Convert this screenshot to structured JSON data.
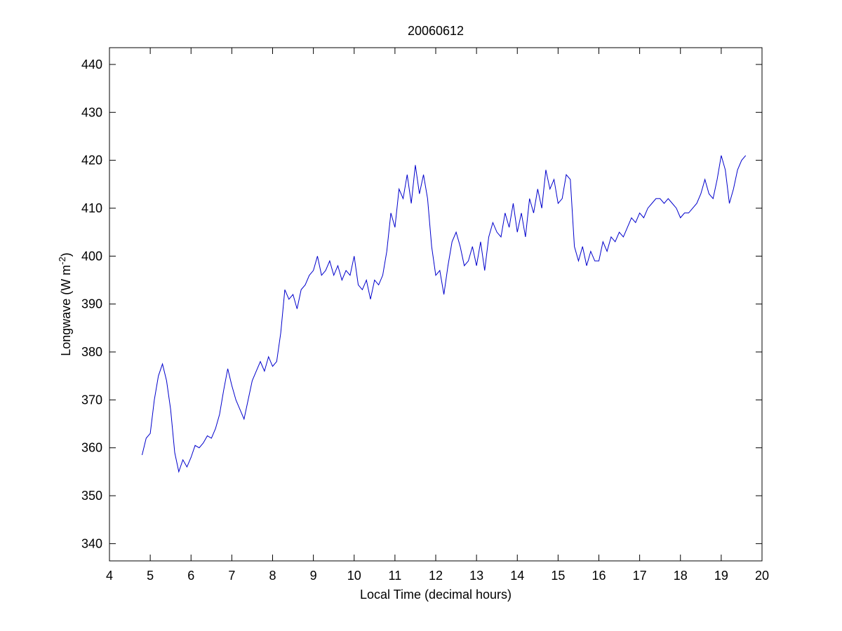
{
  "chart_data": {
    "type": "line",
    "title": "20060612",
    "xlabel": "Local Time (decimal hours)",
    "ylabel": {
      "text": "Longwave (W m",
      "superscript": "-2",
      "suffix": ")"
    },
    "xlim": [
      4,
      20
    ],
    "ylim": [
      336.4,
      443.5
    ],
    "xticks": [
      4,
      5,
      6,
      7,
      8,
      9,
      10,
      11,
      12,
      13,
      14,
      15,
      16,
      17,
      18,
      19,
      20
    ],
    "yticks": [
      340,
      350,
      360,
      370,
      380,
      390,
      400,
      410,
      420,
      430,
      440
    ],
    "grid": false,
    "x": [
      4.8,
      4.9,
      5.0,
      5.1,
      5.2,
      5.3,
      5.4,
      5.5,
      5.6,
      5.7,
      5.8,
      5.9,
      6.0,
      6.1,
      6.2,
      6.3,
      6.4,
      6.5,
      6.6,
      6.7,
      6.8,
      6.9,
      7.0,
      7.1,
      7.2,
      7.3,
      7.4,
      7.5,
      7.6,
      7.7,
      7.8,
      7.9,
      8.0,
      8.1,
      8.2,
      8.3,
      8.4,
      8.5,
      8.6,
      8.7,
      8.8,
      8.9,
      9.0,
      9.1,
      9.2,
      9.3,
      9.4,
      9.5,
      9.6,
      9.7,
      9.8,
      9.9,
      10.0,
      10.1,
      10.2,
      10.3,
      10.4,
      10.5,
      10.6,
      10.7,
      10.8,
      10.9,
      11.0,
      11.1,
      11.2,
      11.3,
      11.4,
      11.5,
      11.6,
      11.7,
      11.8,
      11.9,
      12.0,
      12.1,
      12.2,
      12.3,
      12.4,
      12.5,
      12.6,
      12.7,
      12.8,
      12.9,
      13.0,
      13.1,
      13.2,
      13.3,
      13.4,
      13.5,
      13.6,
      13.7,
      13.8,
      13.9,
      14.0,
      14.1,
      14.2,
      14.3,
      14.4,
      14.5,
      14.6,
      14.7,
      14.8,
      14.9,
      15.0,
      15.1,
      15.2,
      15.3,
      15.4,
      15.5,
      15.6,
      15.7,
      15.8,
      15.9,
      16.0,
      16.1,
      16.2,
      16.3,
      16.4,
      16.5,
      16.6,
      16.7,
      16.8,
      16.9,
      17.0,
      17.1,
      17.2,
      17.3,
      17.4,
      17.5,
      17.6,
      17.7,
      17.8,
      17.9,
      18.0,
      18.1,
      18.2,
      18.3,
      18.4,
      18.5,
      18.6,
      18.7,
      18.8,
      18.9,
      19.0,
      19.1,
      19.2,
      19.3,
      19.4,
      19.5,
      19.6
    ],
    "series": [
      {
        "name": "Longwave",
        "color": "#0000cc",
        "values": [
          358.5,
          362,
          363,
          370,
          375,
          377.5,
          374,
          368,
          359,
          355,
          357.5,
          356,
          358,
          360.5,
          360,
          361,
          362.5,
          362,
          364,
          367,
          372,
          376.5,
          373,
          370,
          368,
          366,
          370,
          374,
          376,
          378,
          376,
          379,
          377,
          378,
          384,
          393,
          391,
          392,
          389,
          393,
          394,
          396,
          397,
          400,
          396,
          397,
          399,
          396,
          398,
          395,
          397,
          396,
          400,
          394,
          393,
          395,
          391,
          395,
          394,
          396,
          401,
          409,
          406,
          414,
          412,
          417,
          411,
          419,
          413,
          417,
          412,
          402,
          396,
          397,
          392,
          398,
          403,
          405,
          402,
          398,
          399,
          402,
          398,
          403,
          397,
          404,
          407,
          405,
          404,
          409,
          406,
          411,
          405,
          409,
          404,
          412,
          409,
          414,
          410,
          418,
          414,
          416,
          411,
          412,
          417,
          416,
          402,
          399,
          402,
          398,
          401,
          399,
          399,
          403,
          401,
          404,
          403,
          405,
          404,
          406,
          408,
          407,
          409,
          408,
          410,
          411,
          412,
          412,
          411,
          412,
          411,
          410,
          408,
          409,
          409,
          410,
          411,
          413,
          416,
          413,
          412,
          416,
          421,
          418,
          411,
          414,
          418,
          420,
          421
        ]
      }
    ]
  }
}
